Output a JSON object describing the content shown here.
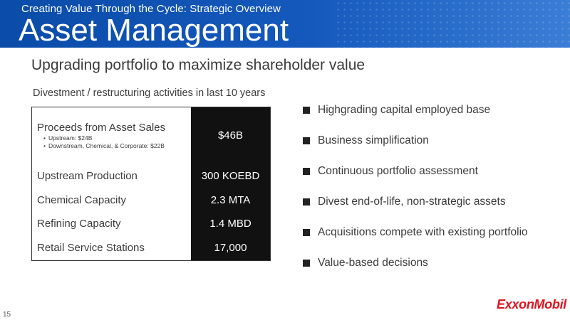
{
  "header": {
    "supertitle": "Creating Value Through the Cycle: Strategic Overview",
    "title": "Asset Management"
  },
  "subtitle": "Upgrading portfolio to maximize shareholder value",
  "table": {
    "caption": "Divestment / restructuring activities in last 10 years",
    "rows": [
      {
        "label": "Proceeds from Asset Sales",
        "sub_items": [
          "Upstream: $24B",
          "Downstream, Chemical, & Corporate: $22B"
        ],
        "value": "$46B"
      },
      {
        "label": "Upstream Production",
        "value": "300 KOEBD"
      },
      {
        "label": "Chemical Capacity",
        "value": "2.3 MTA"
      },
      {
        "label": "Refining Capacity",
        "value": "1.4 MBD"
      },
      {
        "label": "Retail Service Stations",
        "value": "17,000"
      }
    ]
  },
  "bullets": [
    "Highgrading capital employed base",
    "Business simplification",
    "Continuous portfolio assessment",
    "Divest end-of-life, non-strategic assets",
    "Acquisitions compete with existing portfolio",
    "Value-based decisions"
  ],
  "footer": {
    "page_number": "15",
    "logo_text": "ExxonMobil"
  },
  "colors": {
    "header_blue": "#0a4ca8",
    "value_cell_bg": "#111111",
    "logo_red": "#e0141e"
  }
}
